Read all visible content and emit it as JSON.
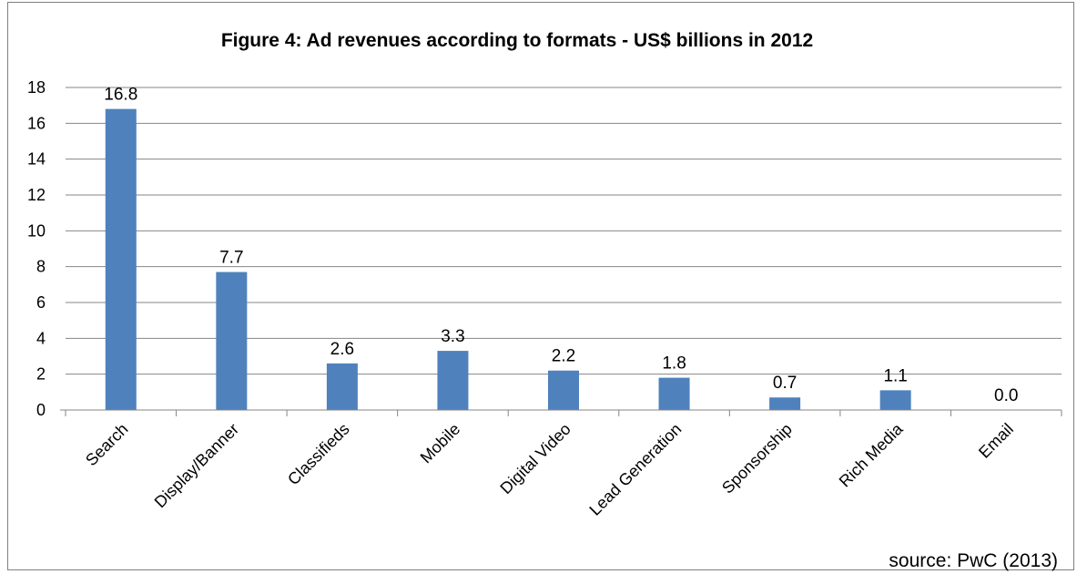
{
  "chart_data": {
    "type": "bar",
    "title": "Figure 4: Ad revenues according to formats - US$ billions in 2012",
    "categories": [
      "Search",
      "Display/Banner",
      "Classifieds",
      "Mobile",
      "Digital Video",
      "Lead Generation",
      "Sponsorship",
      "Rich Media",
      "Email"
    ],
    "values": [
      16.8,
      7.7,
      2.6,
      3.3,
      2.2,
      1.8,
      0.7,
      1.1,
      0.0
    ],
    "data_labels": [
      "16.8",
      "7.7",
      "2.6",
      "3.3",
      "2.2",
      "1.8",
      "0.7",
      "1.1",
      "0.0"
    ],
    "xlabel": "",
    "ylabel": "",
    "ylim": [
      0,
      18
    ],
    "yticks": [
      0,
      2,
      4,
      6,
      8,
      10,
      12,
      14,
      16,
      18
    ],
    "grid": true,
    "legend": "none",
    "bar_color": "#4f81bd",
    "source_note": "source: PwC (2013)"
  }
}
